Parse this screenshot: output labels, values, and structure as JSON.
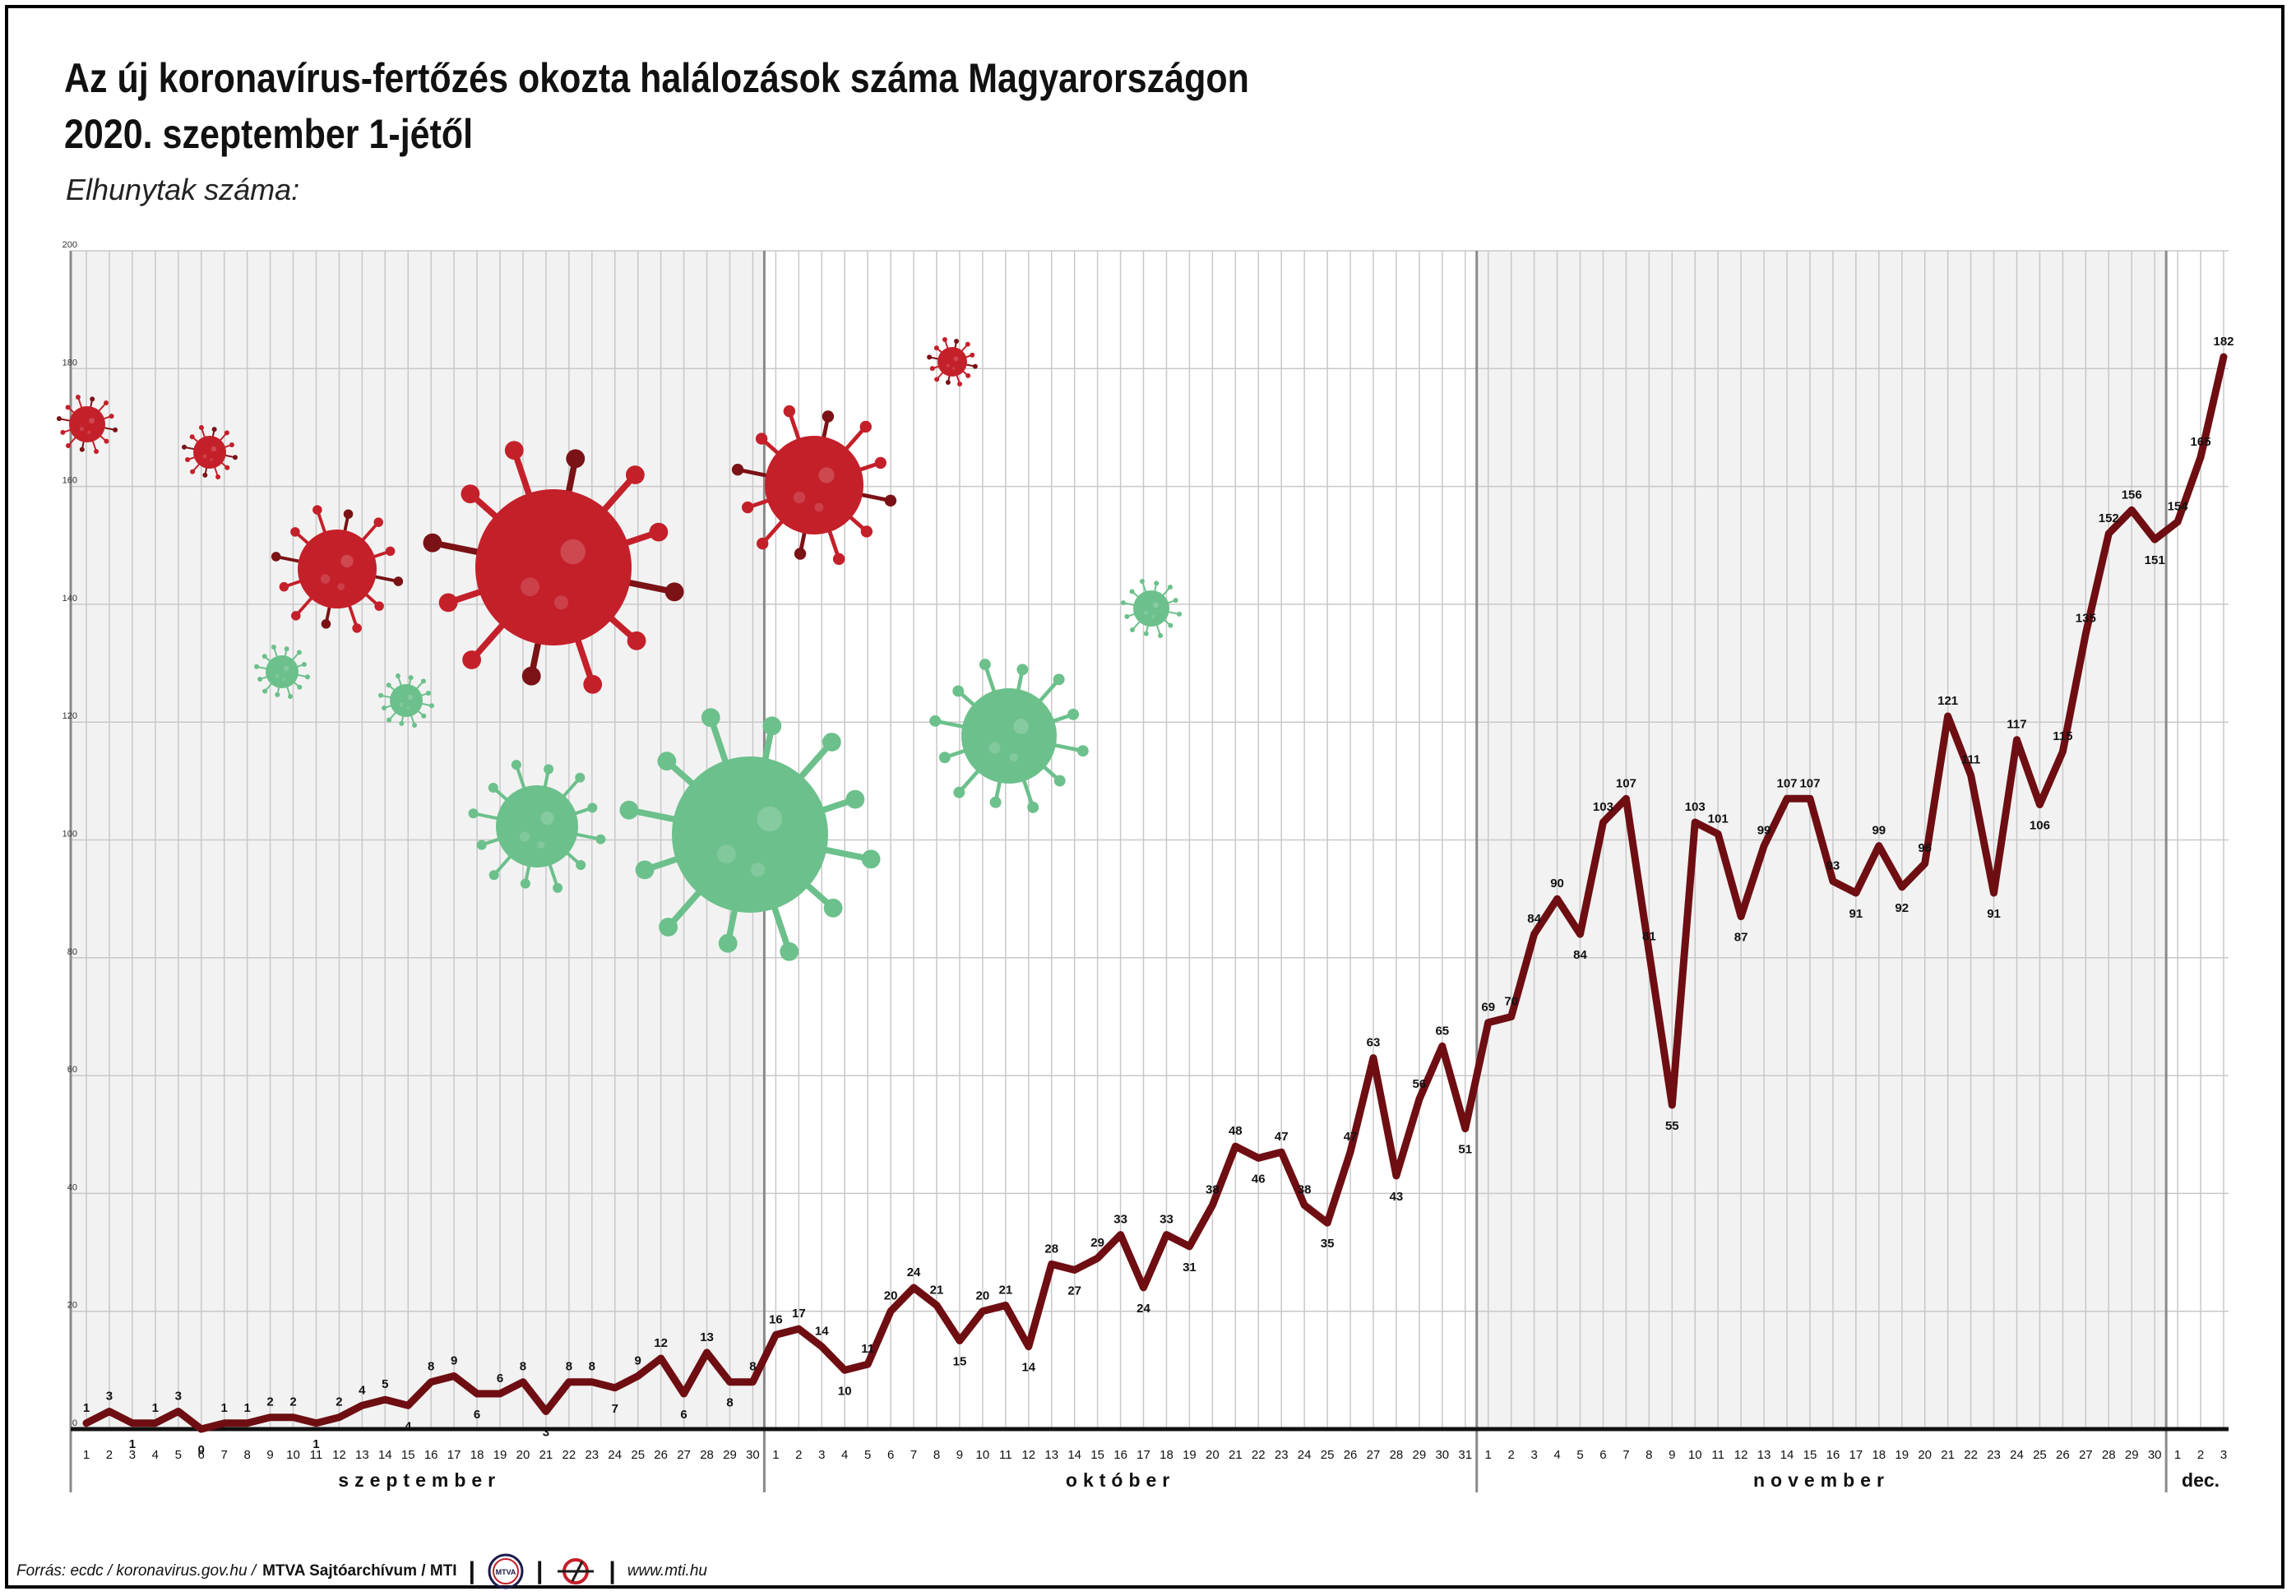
{
  "title_line1": "Az új koronavírus-fertőzés okozta halálozások száma Magyarországon",
  "title_line2": "2020. szeptember 1-jétől",
  "subtitle": "Elhunytak száma:",
  "footer": {
    "source": "Forrás: ecdc / koronavirus.gov.hu /",
    "agency": "MTVA Sajtóarchívum / MTI",
    "logo1_text": "MTVA",
    "website": "www.mti.hu"
  },
  "colors": {
    "line": "#6e0e12",
    "virus_red": "#c4202a",
    "virus_green": "#6cc08b",
    "grid": "#c8c8c8",
    "panel": "#f2f2f2"
  },
  "chart_data": {
    "type": "line",
    "ylim": [
      0,
      200
    ],
    "yticks": [
      0,
      20,
      40,
      60,
      80,
      100,
      120,
      140,
      160,
      180,
      200
    ],
    "grid": true,
    "months": [
      {
        "label": "szeptember",
        "days": 30,
        "shaded": true
      },
      {
        "label": "október",
        "days": 31,
        "shaded": false
      },
      {
        "label": "november",
        "days": 30,
        "shaded": true
      },
      {
        "label": "dec.",
        "days": 3,
        "shaded": false
      }
    ],
    "series": [
      {
        "values": [
          1,
          3,
          1,
          1,
          3,
          0,
          1,
          1,
          2,
          2,
          1,
          2,
          4,
          5,
          4,
          8,
          9,
          6,
          6,
          8,
          3,
          8,
          8,
          7,
          9,
          12,
          6,
          13,
          8,
          8,
          16,
          17,
          14,
          10,
          11,
          20,
          24,
          21,
          15,
          20,
          21,
          14,
          28,
          27,
          29,
          33,
          24,
          33,
          31,
          38,
          48,
          46,
          47,
          38,
          35,
          47,
          63,
          43,
          56,
          65,
          51,
          69,
          70,
          84,
          90,
          84,
          103,
          107,
          81,
          55,
          103,
          101,
          87,
          99,
          107,
          107,
          93,
          91,
          99,
          92,
          96,
          121,
          111,
          91,
          117,
          106,
          115,
          135,
          152,
          156,
          151,
          154,
          165,
          182
        ]
      }
    ]
  }
}
